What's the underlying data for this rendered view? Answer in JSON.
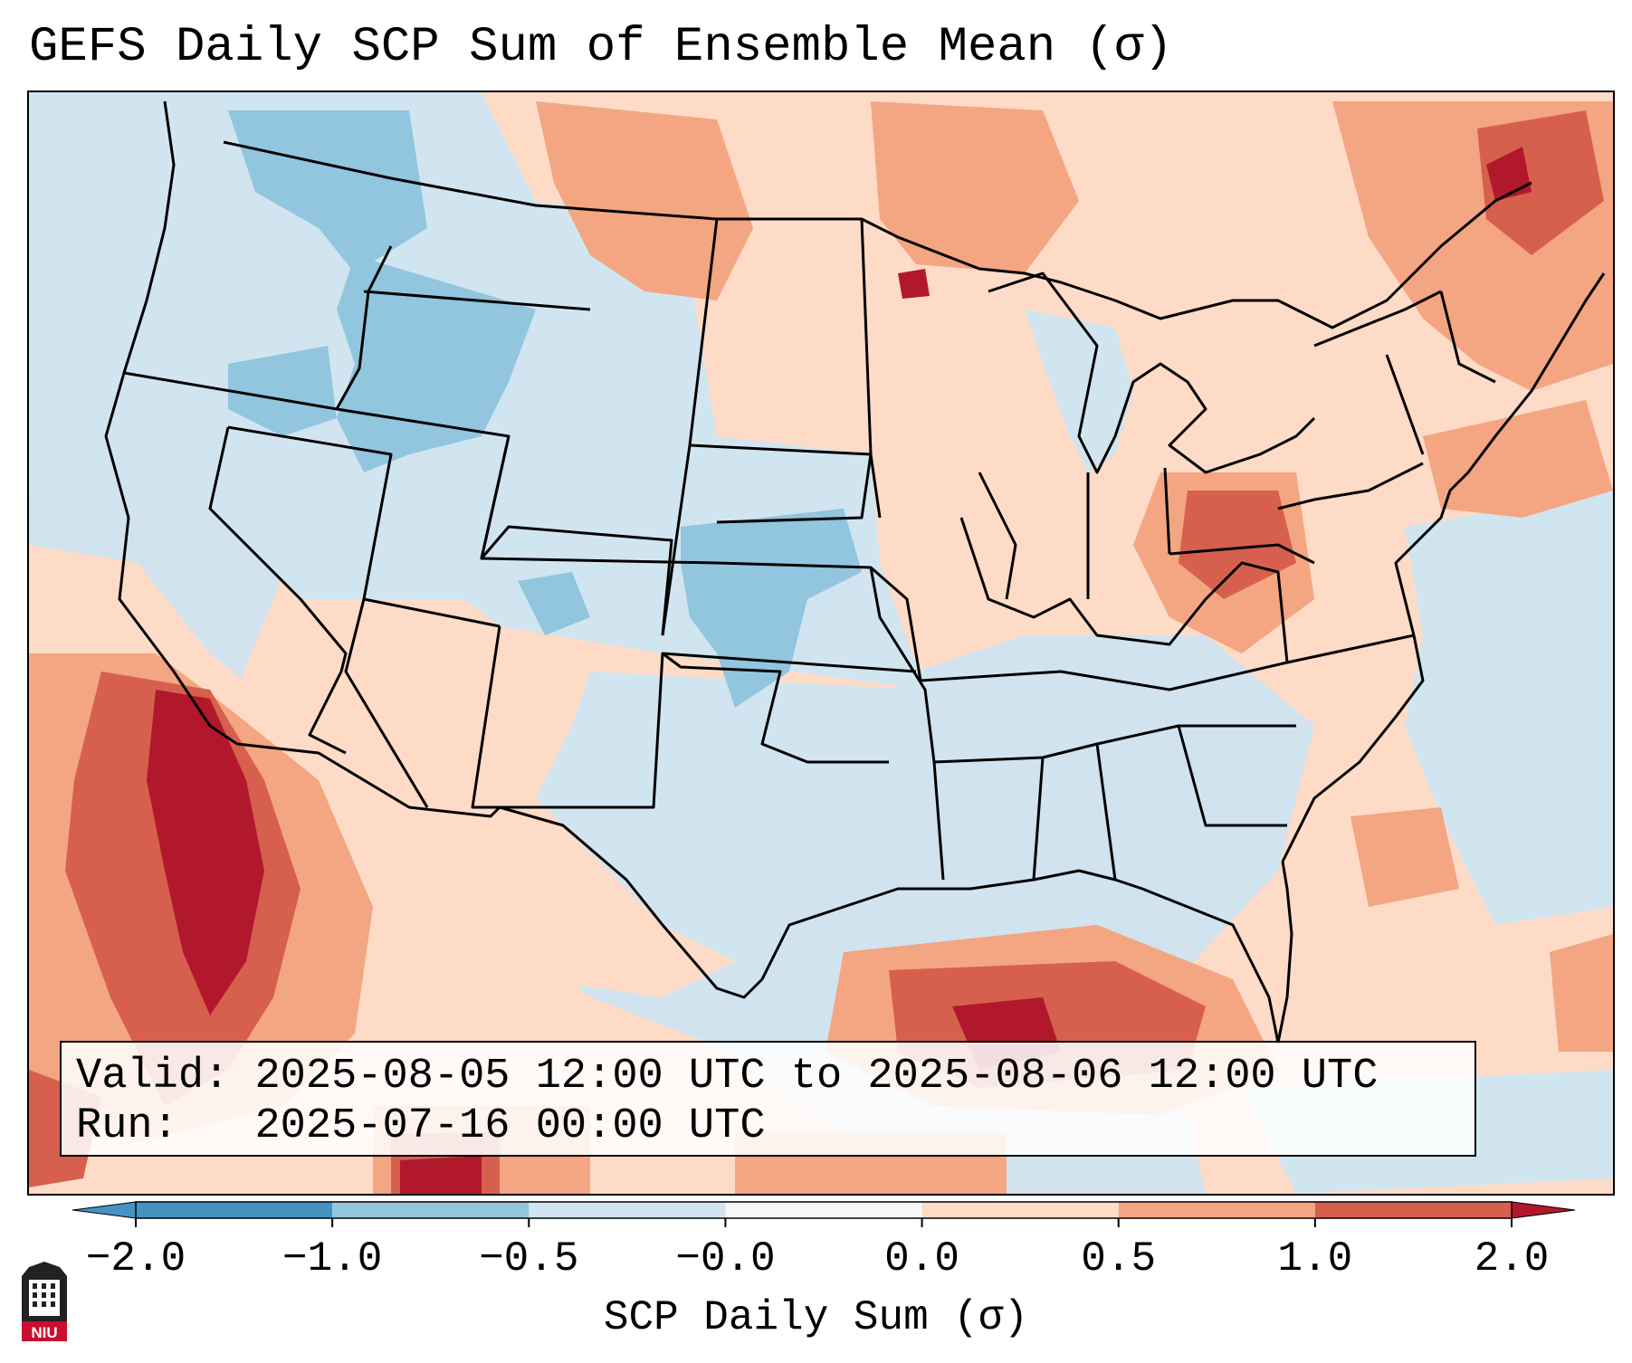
{
  "title": "GEFS Daily SCP Sum of Ensemble Mean (σ)",
  "info": {
    "valid_label": "Valid:",
    "valid_value": "2025-08-05 12:00 UTC to 2025-08-06 12:00 UTC",
    "run_label": "Run:",
    "run_value": "2025-07-16 00:00 UTC"
  },
  "colorbar": {
    "title": "SCP Daily Sum (σ)",
    "ticks": [
      "−2.0",
      "−1.0",
      "−0.5",
      "−0.0",
      "0.0",
      "0.5",
      "1.0",
      "2.0"
    ],
    "colors": [
      "#4393c3",
      "#92c5de",
      "#d1e5f0",
      "#f7f7f7",
      "#fddbc7",
      "#f4a582",
      "#d6604d",
      "#b2182b"
    ],
    "extend": "both"
  },
  "palette": {
    "strong_neg": "#4393c3",
    "neg": "#92c5de",
    "weak_neg": "#d1e5f0",
    "weak_pos": "#fddbc7",
    "pos": "#f4a582",
    "strong_pos": "#d6604d",
    "very_strong_pos": "#b2182b"
  },
  "logo": {
    "icon": "niu-logo-icon",
    "text": "NIU"
  }
}
